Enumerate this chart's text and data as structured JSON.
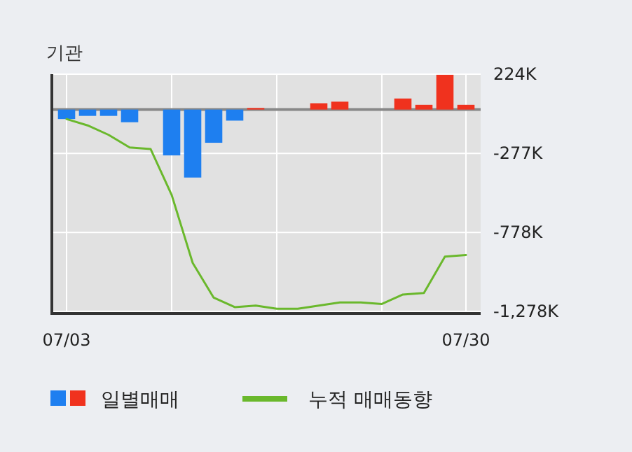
{
  "chart_data": {
    "type": "bar",
    "title": "기관",
    "categories": [
      "07/03",
      null,
      null,
      null,
      null,
      null,
      null,
      null,
      null,
      null,
      null,
      null,
      null,
      null,
      null,
      null,
      null,
      null,
      null,
      "07/30"
    ],
    "series": [
      {
        "name": "일별매매",
        "colors": [
          "#1e7ff0",
          "#1e7ff0",
          "#1e7ff0",
          "#1e7ff0",
          "#1e7ff0",
          "#1e7ff0",
          "#1e7ff0",
          "#1e7ff0",
          "#1e7ff0",
          "#f0321e",
          "#f0321e",
          "#f0321e",
          "#f0321e",
          "#f0321e",
          "#f0321e",
          "#f0321e",
          "#f0321e",
          "#f0321e",
          "#f0321e",
          "#f0321e"
        ],
        "values": [
          -60,
          -40,
          -40,
          -80,
          0,
          -290,
          -430,
          -210,
          -70,
          10,
          0,
          0,
          40,
          50,
          0,
          0,
          70,
          30,
          220,
          30
        ]
      },
      {
        "name": "누적 매매동향",
        "type": "line",
        "color": "#6ab82c",
        "values": [
          -60,
          -100,
          -160,
          -240,
          -250,
          -540,
          -970,
          -1190,
          -1250,
          -1240,
          -1260,
          -1260,
          -1240,
          -1220,
          -1220,
          -1230,
          -1170,
          -1160,
          -930,
          -920
        ]
      }
    ],
    "ylim": [
      -1290,
      224
    ],
    "yticks": [
      {
        "value": 224,
        "label": "224K"
      },
      {
        "value": -277,
        "label": "-277K"
      },
      {
        "value": -778,
        "label": "-778K"
      },
      {
        "value": -1278,
        "label": "-1,278K"
      }
    ],
    "grid": true,
    "legend": "bottom",
    "marker": "none",
    "line_style": "solid"
  }
}
